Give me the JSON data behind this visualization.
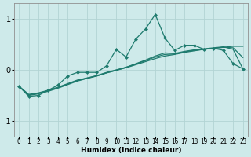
{
  "xlabel": "Humidex (Indice chaleur)",
  "xlim": [
    -0.5,
    23.5
  ],
  "ylim": [
    -1.3,
    1.3
  ],
  "yticks": [
    -1,
    0,
    1
  ],
  "xticks": [
    0,
    1,
    2,
    3,
    4,
    5,
    6,
    7,
    8,
    9,
    10,
    11,
    12,
    13,
    14,
    15,
    16,
    17,
    18,
    19,
    20,
    21,
    22,
    23
  ],
  "bg_color": "#ceeaea",
  "grid_color": "#b2d4d4",
  "line_color": "#1e7b6e",
  "line1_y": [
    -0.32,
    -0.52,
    -0.5,
    -0.4,
    -0.3,
    -0.12,
    -0.05,
    -0.05,
    -0.05,
    0.08,
    0.4,
    0.25,
    0.6,
    0.8,
    1.08,
    0.62,
    0.38,
    0.48,
    0.48,
    0.4,
    0.42,
    0.38,
    0.12,
    0.02
  ],
  "line2_y": [
    -0.32,
    -0.48,
    -0.45,
    -0.4,
    -0.34,
    -0.27,
    -0.2,
    -0.16,
    -0.12,
    -0.06,
    -0.01,
    0.04,
    0.1,
    0.16,
    0.22,
    0.27,
    0.3,
    0.34,
    0.37,
    0.4,
    0.42,
    0.44,
    0.46,
    0.46
  ],
  "line3_y": [
    -0.32,
    -0.5,
    -0.47,
    -0.42,
    -0.36,
    -0.29,
    -0.22,
    -0.17,
    -0.12,
    -0.06,
    -0.01,
    0.05,
    0.12,
    0.19,
    0.27,
    0.33,
    0.32,
    0.36,
    0.39,
    0.41,
    0.43,
    0.45,
    0.4,
    0.02
  ],
  "line4_y": [
    -0.32,
    -0.49,
    -0.46,
    -0.41,
    -0.35,
    -0.28,
    -0.21,
    -0.16,
    -0.11,
    -0.05,
    0.0,
    0.05,
    0.11,
    0.18,
    0.25,
    0.3,
    0.31,
    0.35,
    0.38,
    0.4,
    0.42,
    0.44,
    0.43,
    0.24
  ]
}
